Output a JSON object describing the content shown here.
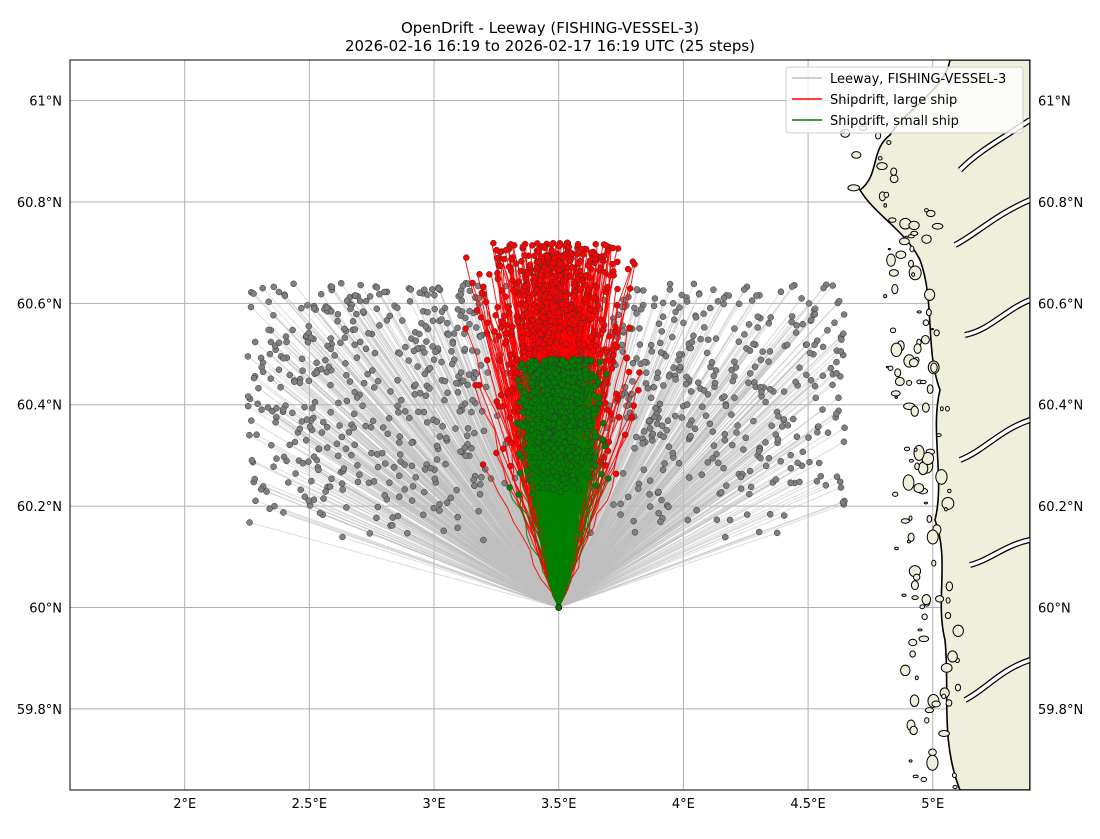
{
  "chart_data": {
    "type": "map-trajectories",
    "title": "OpenDrift - Leeway (FISHING-VESSEL-3)",
    "subtitle": "2026-02-16 16:19 to 2026-02-17 16:19 UTC (25 steps)",
    "lon_range": [
      1.54,
      5.39
    ],
    "lat_range": [
      59.64,
      61.08
    ],
    "x_ticks": [
      {
        "value": 2.0,
        "label": "2°E"
      },
      {
        "value": 2.5,
        "label": "2.5°E"
      },
      {
        "value": 3.0,
        "label": "3°E"
      },
      {
        "value": 3.5,
        "label": "3.5°E"
      },
      {
        "value": 4.0,
        "label": "4°E"
      },
      {
        "value": 4.5,
        "label": "4.5°E"
      },
      {
        "value": 5.0,
        "label": "5°E"
      }
    ],
    "y_ticks": [
      {
        "value": 59.8,
        "label": "59.8°N"
      },
      {
        "value": 60.0,
        "label": "60°N"
      },
      {
        "value": 60.2,
        "label": "60.2°N"
      },
      {
        "value": 60.4,
        "label": "60.4°N"
      },
      {
        "value": 60.6,
        "label": "60.6°N"
      },
      {
        "value": 60.8,
        "label": "60.8°N"
      },
      {
        "value": 61.0,
        "label": "61°N"
      }
    ],
    "grid": true,
    "legend_position": "top-right",
    "seed": {
      "lon": 3.5,
      "lat": 60.0
    },
    "series": [
      {
        "name": "Leeway, FISHING-VESSEL-3",
        "color": "#808080",
        "line_color": "#bfbfbf",
        "count": 900,
        "endpoint_lon_range": [
          2.25,
          4.65
        ],
        "endpoint_lat_range": [
          60.13,
          60.64
        ]
      },
      {
        "name": "Shipdrift, large ship",
        "color": "#ff0000",
        "count": 700,
        "endpoint_lon_range": [
          3.1,
          3.87
        ],
        "endpoint_lat_range": [
          60.25,
          60.72
        ]
      },
      {
        "name": "Shipdrift, small ship",
        "color": "#008000",
        "count": 700,
        "endpoint_lon_range": [
          3.28,
          3.73
        ],
        "endpoint_lat_range": [
          60.22,
          60.49
        ]
      }
    ],
    "land_color": "#efefdb"
  }
}
